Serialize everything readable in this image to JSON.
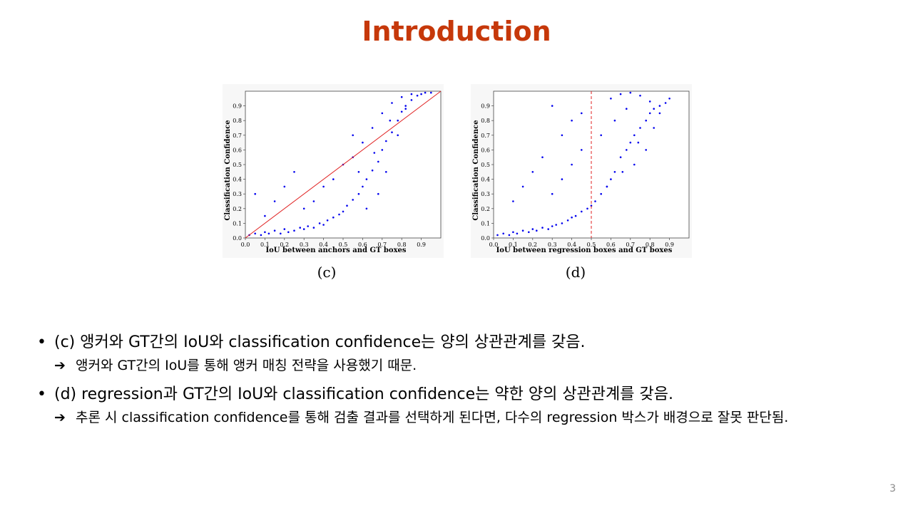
{
  "slide": {
    "title": "Introduction",
    "page_number": "3"
  },
  "figures": [
    {
      "caption": "(c)"
    },
    {
      "caption": "(d)"
    }
  ],
  "bullets": [
    {
      "text": "(c) 앵커와 GT간의 IoU와 classification confidence는 양의 상관관계를 갖음.",
      "sub": "앵커와 GT간의 IoU를 통해 앵커 매칭 전략을 사용했기 때문."
    },
    {
      "text": "(d) regression과 GT간의 IoU와 classification confidence는 약한 양의 상관관계를 갖음.",
      "sub": "추론 시 classification confidence를 통해 검출 결과를 선택하게 된다면, 다수의 regression 박스가 배경으로 잘못 판단됨."
    }
  ],
  "icons": {
    "bullet": "bullet-dot-icon",
    "arrow": "right-arrow-icon"
  },
  "chart_data": [
    {
      "type": "scatter",
      "xlabel": "IoU between anchors and GT boxes",
      "ylabel": "Classification Confidence",
      "xlim": [
        0.0,
        1.0
      ],
      "ylim": [
        0.0,
        1.0
      ],
      "x_ticks": [
        "0.0",
        "0.1",
        "0.2",
        "0.3",
        "0.4",
        "0.5",
        "0.6",
        "0.7",
        "0.8",
        "0.9"
      ],
      "y_ticks": [
        "0.0",
        "0.1",
        "0.2",
        "0.3",
        "0.4",
        "0.5",
        "0.6",
        "0.7",
        "0.8",
        "0.9"
      ],
      "point_color": "#0000ee",
      "reference_line": {
        "type": "diagonal",
        "from": [
          0.0,
          0.0
        ],
        "to": [
          1.0,
          1.0
        ],
        "color": "#e02020"
      },
      "x": [
        0.02,
        0.05,
        0.08,
        0.1,
        0.12,
        0.15,
        0.18,
        0.2,
        0.22,
        0.25,
        0.28,
        0.3,
        0.32,
        0.35,
        0.38,
        0.4,
        0.42,
        0.45,
        0.48,
        0.5,
        0.52,
        0.55,
        0.58,
        0.6,
        0.62,
        0.65,
        0.68,
        0.7,
        0.72,
        0.75,
        0.78,
        0.8,
        0.82,
        0.85,
        0.88,
        0.9,
        0.92,
        0.95,
        0.55,
        0.6,
        0.65,
        0.7,
        0.75,
        0.8,
        0.85,
        0.62,
        0.68,
        0.72,
        0.78,
        0.82,
        0.58,
        0.66,
        0.74,
        0.3,
        0.35,
        0.4,
        0.45,
        0.5,
        0.55,
        0.1,
        0.15,
        0.2,
        0.25,
        0.05
      ],
      "y": [
        0.02,
        0.03,
        0.02,
        0.04,
        0.03,
        0.05,
        0.03,
        0.06,
        0.04,
        0.05,
        0.07,
        0.06,
        0.08,
        0.07,
        0.1,
        0.09,
        0.12,
        0.14,
        0.16,
        0.18,
        0.22,
        0.26,
        0.3,
        0.35,
        0.4,
        0.46,
        0.52,
        0.6,
        0.66,
        0.72,
        0.8,
        0.86,
        0.9,
        0.94,
        0.97,
        0.98,
        0.99,
        0.99,
        0.55,
        0.65,
        0.75,
        0.85,
        0.92,
        0.96,
        0.98,
        0.2,
        0.3,
        0.45,
        0.7,
        0.88,
        0.45,
        0.58,
        0.8,
        0.2,
        0.25,
        0.35,
        0.4,
        0.5,
        0.7,
        0.15,
        0.25,
        0.35,
        0.45,
        0.3
      ]
    },
    {
      "type": "scatter",
      "xlabel": "IoU between regression boxes and GT boxes",
      "ylabel": "Classification Confidence",
      "xlim": [
        0.0,
        1.0
      ],
      "ylim": [
        0.0,
        1.0
      ],
      "x_ticks": [
        "0.0",
        "0.1",
        "0.2",
        "0.3",
        "0.4",
        "0.5",
        "0.6",
        "0.7",
        "0.8",
        "0.9"
      ],
      "y_ticks": [
        "0.0",
        "0.1",
        "0.2",
        "0.3",
        "0.4",
        "0.5",
        "0.6",
        "0.7",
        "0.8",
        "0.9"
      ],
      "point_color": "#0000ee",
      "reference_line": {
        "type": "vertical",
        "x": 0.5,
        "style": "dashed",
        "color": "#e02020"
      },
      "x": [
        0.02,
        0.05,
        0.08,
        0.1,
        0.12,
        0.15,
        0.18,
        0.2,
        0.22,
        0.25,
        0.28,
        0.3,
        0.32,
        0.35,
        0.38,
        0.4,
        0.42,
        0.45,
        0.48,
        0.5,
        0.52,
        0.55,
        0.58,
        0.6,
        0.62,
        0.65,
        0.68,
        0.7,
        0.72,
        0.75,
        0.78,
        0.8,
        0.82,
        0.85,
        0.88,
        0.9,
        0.6,
        0.65,
        0.7,
        0.75,
        0.8,
        0.85,
        0.55,
        0.62,
        0.68,
        0.72,
        0.78,
        0.82,
        0.58,
        0.66,
        0.74,
        0.3,
        0.35,
        0.4,
        0.45,
        0.2,
        0.25,
        0.15,
        0.1,
        0.35,
        0.4,
        0.45,
        0.3
      ],
      "y": [
        0.02,
        0.03,
        0.02,
        0.04,
        0.03,
        0.05,
        0.04,
        0.06,
        0.05,
        0.07,
        0.06,
        0.08,
        0.09,
        0.1,
        0.12,
        0.14,
        0.15,
        0.18,
        0.2,
        0.22,
        0.25,
        0.3,
        0.35,
        0.4,
        0.45,
        0.55,
        0.6,
        0.65,
        0.7,
        0.75,
        0.8,
        0.85,
        0.88,
        0.9,
        0.92,
        0.95,
        0.95,
        0.98,
        0.99,
        0.97,
        0.93,
        0.85,
        0.7,
        0.8,
        0.88,
        0.5,
        0.6,
        0.75,
        0.35,
        0.45,
        0.65,
        0.3,
        0.4,
        0.5,
        0.6,
        0.45,
        0.55,
        0.35,
        0.25,
        0.7,
        0.8,
        0.85,
        0.9
      ]
    }
  ]
}
